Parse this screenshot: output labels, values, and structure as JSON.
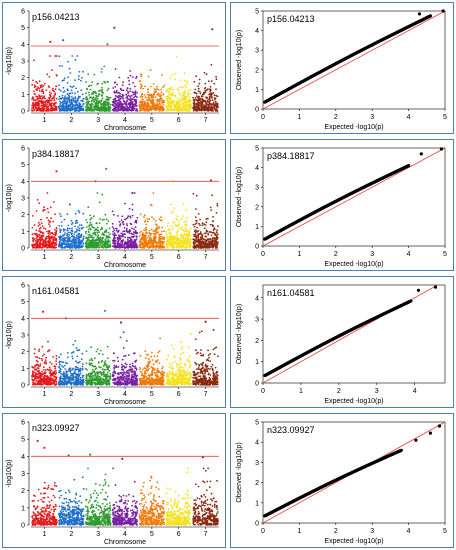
{
  "colors": {
    "border": "#4f7fb5",
    "threshold": "#e8413c",
    "chromosomes": [
      "#e31a1c",
      "#1f6fc9",
      "#2e9b2e",
      "#7a1fa2",
      "#f07a0a",
      "#f5e11b",
      "#8b2a10"
    ],
    "qq_points": "#000000",
    "qq_line": "#e8413c"
  },
  "chart_data": [
    {
      "type": "scatter",
      "subtype": "manhattan",
      "title": "p156.04213",
      "xlabel": "Chromosome",
      "ylabel": "-log10(p)",
      "x_ticks": [
        "1",
        "2",
        "3",
        "4",
        "5",
        "6",
        "7"
      ],
      "y_ticks": [
        0,
        1,
        2,
        3,
        4,
        5,
        6
      ],
      "ylim": [
        0,
        6
      ],
      "threshold": 3.9,
      "peaks": [
        {
          "chr": 1,
          "pos": 0.72,
          "y": 4.15
        },
        {
          "chr": 2,
          "pos": 0.2,
          "y": 4.25
        },
        {
          "chr": 3,
          "pos": 0.85,
          "y": 4.0
        },
        {
          "chr": 4,
          "pos": 0.1,
          "y": 5.0
        },
        {
          "chr": 7,
          "pos": 0.75,
          "y": 4.9
        }
      ]
    },
    {
      "type": "scatter",
      "subtype": "qq",
      "title": "p156.04213",
      "xlabel": "Expected -log10(p)",
      "ylabel": "Observed -log10(p)",
      "x_ticks": [
        0,
        1,
        2,
        3,
        4,
        5
      ],
      "y_ticks": [
        0,
        1,
        2,
        3,
        4,
        5
      ],
      "xlim": [
        0,
        5
      ],
      "ylim": [
        0,
        5
      ],
      "curve_end": [
        4.6,
        4.75
      ],
      "outliers": [
        [
          4.3,
          4.85
        ],
        [
          4.95,
          5.0
        ]
      ]
    },
    {
      "type": "scatter",
      "subtype": "manhattan",
      "title": "p384.18817",
      "xlabel": "Chromosome",
      "ylabel": "-log10(p)",
      "x_ticks": [
        "1",
        "2",
        "3",
        "4",
        "5",
        "6",
        "7"
      ],
      "y_ticks": [
        0,
        1,
        2,
        3,
        4,
        5,
        6
      ],
      "ylim": [
        0,
        6
      ],
      "threshold": 4.0,
      "peaks": [
        {
          "chr": 1,
          "pos": 0.95,
          "y": 4.6
        },
        {
          "chr": 3,
          "pos": 0.8,
          "y": 4.75
        },
        {
          "chr": 3,
          "pos": 0.4,
          "y": 4.0
        },
        {
          "chr": 6,
          "pos": 0.3,
          "y": 4.0
        },
        {
          "chr": 7,
          "pos": 0.7,
          "y": 4.05
        }
      ]
    },
    {
      "type": "scatter",
      "subtype": "qq",
      "title": "p384.18817",
      "xlabel": "Expected -log10(p)",
      "ylabel": "Observed -log10(p)",
      "x_ticks": [
        0,
        1,
        2,
        3,
        4,
        5
      ],
      "y_ticks": [
        0,
        1,
        2,
        3,
        4,
        5
      ],
      "xlim": [
        0,
        5
      ],
      "ylim": [
        0,
        5
      ],
      "curve_end": [
        4.0,
        4.1
      ],
      "outliers": [
        [
          4.35,
          4.7
        ],
        [
          4.9,
          4.95
        ]
      ]
    },
    {
      "type": "scatter",
      "subtype": "manhattan",
      "title": "n161.04581",
      "xlabel": "Chromosome",
      "ylabel": "-log10(p)",
      "x_ticks": [
        "1",
        "2",
        "3",
        "4",
        "5",
        "6",
        "7"
      ],
      "y_ticks": [
        0,
        1,
        2,
        3,
        4,
        5,
        6
      ],
      "ylim": [
        0,
        6
      ],
      "threshold": 4.0,
      "peaks": [
        {
          "chr": 1,
          "pos": 0.45,
          "y": 4.4
        },
        {
          "chr": 2,
          "pos": 0.3,
          "y": 4.0
        },
        {
          "chr": 3,
          "pos": 0.75,
          "y": 4.45
        },
        {
          "chr": 4,
          "pos": 0.35,
          "y": 3.75
        },
        {
          "chr": 7,
          "pos": 0.5,
          "y": 3.8
        }
      ]
    },
    {
      "type": "scatter",
      "subtype": "qq",
      "title": "n161.04581",
      "xlabel": "Expected -log10(p)",
      "ylabel": "Observed -log10(p)",
      "x_ticks": [
        0,
        1,
        2,
        3,
        4
      ],
      "y_ticks": [
        0,
        1,
        2,
        3,
        4
      ],
      "xlim": [
        0,
        4.8
      ],
      "ylim": [
        0,
        4.6
      ],
      "curve_end": [
        3.9,
        3.85
      ],
      "outliers": [
        [
          4.1,
          4.35
        ],
        [
          4.55,
          4.5
        ]
      ]
    },
    {
      "type": "scatter",
      "subtype": "manhattan",
      "title": "n323.09927",
      "xlabel": "Chromosome",
      "ylabel": "-log10(p)",
      "x_ticks": [
        "1",
        "2",
        "3",
        "4",
        "5",
        "6",
        "7"
      ],
      "y_ticks": [
        0,
        1,
        2,
        3,
        4,
        5,
        6
      ],
      "ylim": [
        0,
        6
      ],
      "threshold": 4.0,
      "peaks": [
        {
          "chr": 1,
          "pos": 0.25,
          "y": 4.9
        },
        {
          "chr": 1,
          "pos": 0.5,
          "y": 4.5
        },
        {
          "chr": 2,
          "pos": 0.4,
          "y": 4.05
        },
        {
          "chr": 3,
          "pos": 0.2,
          "y": 4.1
        },
        {
          "chr": 4,
          "pos": 0.4,
          "y": 3.85
        },
        {
          "chr": 7,
          "pos": 0.4,
          "y": 3.95
        }
      ]
    },
    {
      "type": "scatter",
      "subtype": "qq",
      "title": "n323.09927",
      "xlabel": "Expected -log10(p)",
      "ylabel": "Observed -log10(p)",
      "x_ticks": [
        0,
        1,
        2,
        3,
        4,
        5
      ],
      "y_ticks": [
        0,
        1,
        2,
        3,
        4,
        5
      ],
      "xlim": [
        0,
        5
      ],
      "ylim": [
        0,
        5
      ],
      "curve_end": [
        3.8,
        3.6
      ],
      "outliers": [
        [
          4.2,
          4.1
        ],
        [
          4.6,
          4.45
        ],
        [
          4.85,
          4.8
        ]
      ]
    }
  ]
}
